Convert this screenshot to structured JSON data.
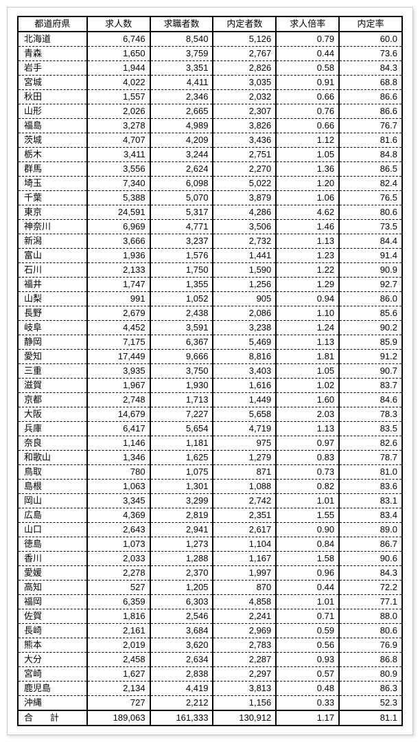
{
  "table": {
    "columns": [
      "都道府県",
      "求人数",
      "求職者数",
      "内定者数",
      "求人倍率",
      "内定率"
    ],
    "rows": [
      [
        "北海道",
        "6,746",
        "8,540",
        "5,126",
        "0.79",
        "60.0"
      ],
      [
        "青森",
        "1,650",
        "3,759",
        "2,767",
        "0.44",
        "73.6"
      ],
      [
        "岩手",
        "1,944",
        "3,351",
        "2,826",
        "0.58",
        "84.3"
      ],
      [
        "宮城",
        "4,022",
        "4,411",
        "3,035",
        "0.91",
        "68.8"
      ],
      [
        "秋田",
        "1,557",
        "2,346",
        "2,032",
        "0.66",
        "86.6"
      ],
      [
        "山形",
        "2,026",
        "2,665",
        "2,307",
        "0.76",
        "86.6"
      ],
      [
        "福島",
        "3,278",
        "4,989",
        "3,826",
        "0.66",
        "76.7"
      ],
      [
        "茨城",
        "4,707",
        "4,209",
        "3,436",
        "1.12",
        "81.6"
      ],
      [
        "栃木",
        "3,411",
        "3,244",
        "2,751",
        "1.05",
        "84.8"
      ],
      [
        "群馬",
        "3,556",
        "2,624",
        "2,270",
        "1.36",
        "86.5"
      ],
      [
        "埼玉",
        "7,340",
        "6,098",
        "5,022",
        "1.20",
        "82.4"
      ],
      [
        "千葉",
        "5,388",
        "5,070",
        "3,879",
        "1.06",
        "76.5"
      ],
      [
        "東京",
        "24,591",
        "5,317",
        "4,286",
        "4.62",
        "80.6"
      ],
      [
        "神奈川",
        "6,969",
        "4,771",
        "3,506",
        "1.46",
        "73.5"
      ],
      [
        "新潟",
        "3,666",
        "3,237",
        "2,732",
        "1.13",
        "84.4"
      ],
      [
        "富山",
        "1,936",
        "1,576",
        "1,441",
        "1.23",
        "91.4"
      ],
      [
        "石川",
        "2,133",
        "1,750",
        "1,590",
        "1.22",
        "90.9"
      ],
      [
        "福井",
        "1,747",
        "1,355",
        "1,256",
        "1.29",
        "92.7"
      ],
      [
        "山梨",
        "991",
        "1,052",
        "905",
        "0.94",
        "86.0"
      ],
      [
        "長野",
        "2,679",
        "2,438",
        "2,086",
        "1.10",
        "85.6"
      ],
      [
        "岐阜",
        "4,452",
        "3,591",
        "3,238",
        "1.24",
        "90.2"
      ],
      [
        "静岡",
        "7,175",
        "6,367",
        "5,469",
        "1.13",
        "85.9"
      ],
      [
        "愛知",
        "17,449",
        "9,666",
        "8,816",
        "1.81",
        "91.2"
      ],
      [
        "三重",
        "3,935",
        "3,750",
        "3,403",
        "1.05",
        "90.7"
      ],
      [
        "滋賀",
        "1,967",
        "1,930",
        "1,616",
        "1.02",
        "83.7"
      ],
      [
        "京都",
        "2,748",
        "1,713",
        "1,449",
        "1.60",
        "84.6"
      ],
      [
        "大阪",
        "14,679",
        "7,227",
        "5,658",
        "2.03",
        "78.3"
      ],
      [
        "兵庫",
        "6,417",
        "5,654",
        "4,719",
        "1.13",
        "83.5"
      ],
      [
        "奈良",
        "1,146",
        "1,181",
        "975",
        "0.97",
        "82.6"
      ],
      [
        "和歌山",
        "1,346",
        "1,625",
        "1,279",
        "0.83",
        "78.7"
      ],
      [
        "鳥取",
        "780",
        "1,075",
        "871",
        "0.73",
        "81.0"
      ],
      [
        "島根",
        "1,063",
        "1,301",
        "1,088",
        "0.82",
        "83.6"
      ],
      [
        "岡山",
        "3,345",
        "3,299",
        "2,742",
        "1.01",
        "83.1"
      ],
      [
        "広島",
        "4,369",
        "2,819",
        "2,351",
        "1.55",
        "83.4"
      ],
      [
        "山口",
        "2,643",
        "2,941",
        "2,617",
        "0.90",
        "89.0"
      ],
      [
        "徳島",
        "1,073",
        "1,273",
        "1,104",
        "0.84",
        "86.7"
      ],
      [
        "香川",
        "2,033",
        "1,288",
        "1,167",
        "1.58",
        "90.6"
      ],
      [
        "愛媛",
        "2,278",
        "2,370",
        "1,997",
        "0.96",
        "84.3"
      ],
      [
        "高知",
        "527",
        "1,205",
        "870",
        "0.44",
        "72.2"
      ],
      [
        "福岡",
        "6,359",
        "6,303",
        "4,858",
        "1.01",
        "77.1"
      ],
      [
        "佐賀",
        "1,816",
        "2,546",
        "2,241",
        "0.71",
        "88.0"
      ],
      [
        "長崎",
        "2,161",
        "3,684",
        "2,969",
        "0.59",
        "80.6"
      ],
      [
        "熊本",
        "2,019",
        "3,620",
        "2,783",
        "0.56",
        "76.9"
      ],
      [
        "大分",
        "2,458",
        "2,634",
        "2,287",
        "0.93",
        "86.8"
      ],
      [
        "宮崎",
        "1,627",
        "2,838",
        "2,297",
        "0.57",
        "80.9"
      ],
      [
        "鹿児島",
        "2,134",
        "4,419",
        "3,813",
        "0.48",
        "86.3"
      ],
      [
        "沖縄",
        "727",
        "2,212",
        "1,156",
        "0.33",
        "52.3"
      ]
    ],
    "total": [
      "合　計",
      "189,063",
      "161,333",
      "130,912",
      "1.17",
      "81.1"
    ]
  }
}
